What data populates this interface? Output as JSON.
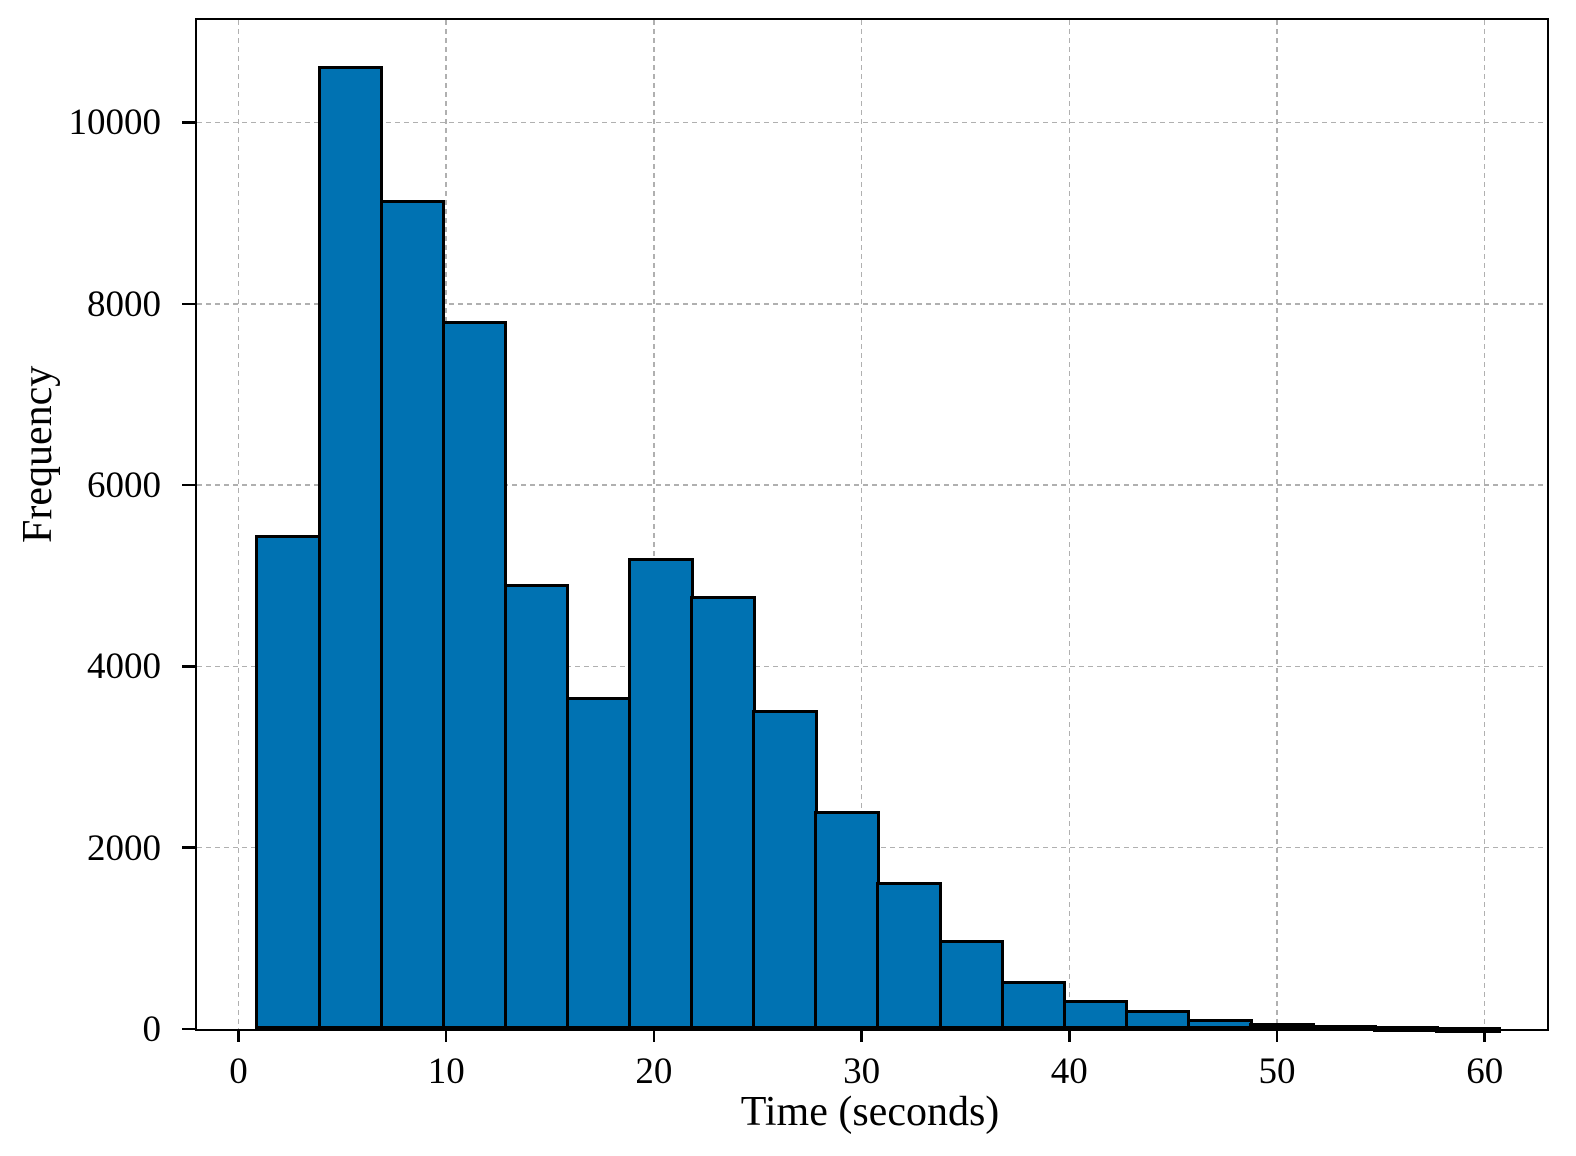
{
  "chart_data": {
    "type": "bar",
    "subtype": "histogram",
    "title": "",
    "xlabel": "Time (seconds)",
    "ylabel": "Frequency",
    "bin_edges": [
      0.9,
      3.89,
      6.88,
      9.87,
      12.86,
      15.85,
      18.84,
      21.83,
      24.82,
      27.81,
      30.8,
      33.79,
      36.78,
      39.77,
      42.76,
      45.75,
      48.74,
      51.73,
      54.72,
      57.71,
      60.7
    ],
    "frequencies": [
      5430,
      10600,
      9120,
      7790,
      4890,
      3640,
      5180,
      4760,
      3500,
      2380,
      1600,
      960,
      510,
      300,
      190,
      90,
      45,
      25,
      12,
      6
    ],
    "xticks": [
      0,
      10,
      20,
      30,
      40,
      50,
      60
    ],
    "yticks": [
      0,
      2000,
      4000,
      6000,
      8000,
      10000
    ],
    "xlim": [
      -2,
      63
    ],
    "ylim": [
      0,
      11130
    ],
    "grid": true,
    "grid_style": "dashed",
    "legend": "none",
    "colors": {
      "bar_fill": "#0072b2",
      "bar_edge": "#000000",
      "grid": "#b0b0b0",
      "axis": "#000000",
      "background": "#ffffff"
    }
  }
}
